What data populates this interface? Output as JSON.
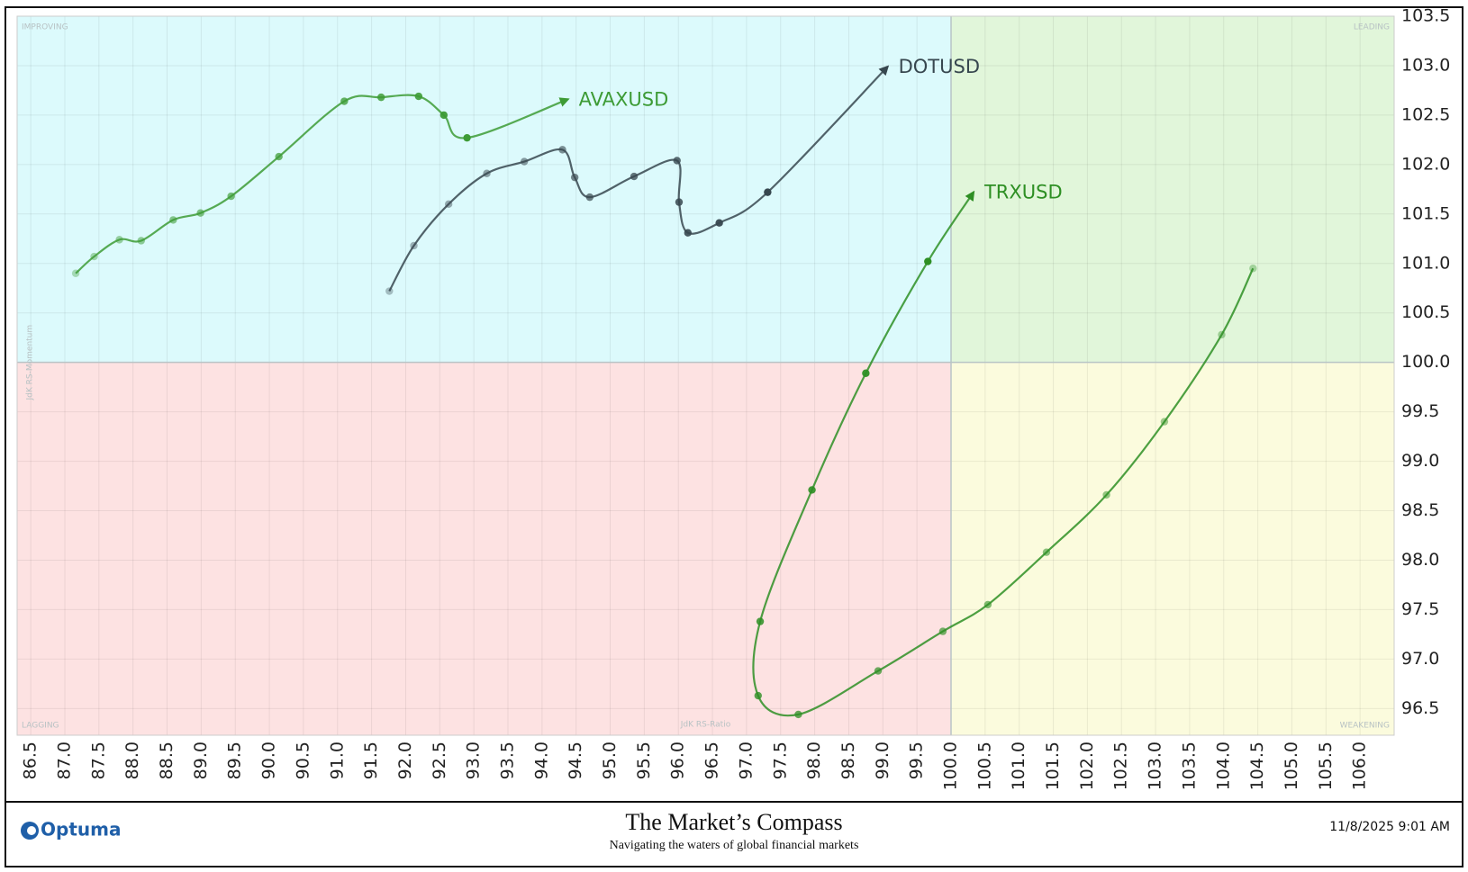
{
  "chart_data": {
    "type": "rrg",
    "quadrant_labels": {
      "top_left": "IMPROVING",
      "top_right": "LEADING",
      "bottom_left": "LAGGING",
      "bottom_right": "WEAKENING"
    },
    "x_label": "JdK RS-Ratio",
    "y_label": "JdK RS-Momentum",
    "quadrant_center": [
      100,
      100
    ],
    "grid": true,
    "xlim": [
      86.3,
      106.5
    ],
    "ylim": [
      96.23,
      103.5
    ],
    "xticks": [
      86.5,
      {
        "value": 87,
        "label": "87.0"
      },
      87.5,
      {
        "value": 88,
        "label": "88.0"
      },
      88.5,
      {
        "value": 89,
        "label": "89.0"
      },
      89.5,
      {
        "value": 90,
        "label": "90.0"
      },
      90.5,
      {
        "value": 91,
        "label": "91.0"
      },
      91.5,
      {
        "value": 92,
        "label": "92.0"
      },
      92.5,
      {
        "value": 93,
        "label": "93.0"
      },
      93.5,
      {
        "value": 94,
        "label": "94.0"
      },
      94.5,
      {
        "value": 95,
        "label": "95.0"
      },
      95.5,
      {
        "value": 96,
        "label": "96.0"
      },
      96.5,
      {
        "value": 97,
        "label": "97.0"
      },
      97.5,
      {
        "value": 98,
        "label": "98.0"
      },
      98.5,
      {
        "value": 99,
        "label": "99.0"
      },
      99.5,
      {
        "value": 100,
        "label": "100.0"
      },
      100.5,
      {
        "value": 101,
        "label": "101.0"
      },
      101.5,
      {
        "value": 102,
        "label": "102.0"
      },
      102.5,
      {
        "value": 103,
        "label": "103.0"
      },
      103.5,
      {
        "value": 104,
        "label": "104.0"
      },
      104.5,
      {
        "value": 105,
        "label": "105.0"
      },
      105.5,
      {
        "value": 106,
        "label": "106.0"
      }
    ],
    "yticks": [
      96.5,
      {
        "value": 97,
        "label": "97.0"
      },
      97.5,
      {
        "value": 98,
        "label": "98.0"
      },
      98.5,
      {
        "value": 99,
        "label": "99.0"
      },
      99.5,
      {
        "value": 100,
        "label": "100.0"
      },
      100.5,
      {
        "value": 101,
        "label": "101.0"
      },
      101.5,
      {
        "value": 102,
        "label": "102.0"
      },
      102.5,
      {
        "value": 103,
        "label": "103.0"
      },
      103.5
    ],
    "series": [
      {
        "name": "AVAXUSD",
        "color": "#3d9b35",
        "x": [
          87.16,
          87.43,
          87.8,
          88.12,
          88.59,
          88.99,
          89.44,
          90.14,
          91.1,
          91.64,
          92.19,
          92.56,
          92.9,
          94.38
        ],
        "values": [
          100.9,
          101.07,
          101.24,
          101.23,
          101.44,
          101.51,
          101.68,
          102.08,
          102.64,
          102.68,
          102.69,
          102.5,
          102.27,
          102.66
        ]
      },
      {
        "name": "DOTUSD",
        "color": "#37474f",
        "x": [
          91.76,
          92.12,
          92.63,
          93.19,
          93.74,
          94.3,
          94.48,
          94.7,
          95.35,
          95.98,
          96.01,
          96.14,
          96.6,
          97.31,
          99.07
        ],
        "values": [
          100.72,
          101.18,
          101.6,
          101.91,
          102.03,
          102.15,
          101.87,
          101.67,
          101.88,
          102.04,
          101.62,
          101.31,
          101.41,
          101.72,
          102.99
        ]
      },
      {
        "name": "TRXUSD",
        "color": "#2e8f24",
        "x": [
          104.43,
          103.97,
          103.13,
          102.28,
          101.4,
          100.54,
          99.88,
          98.93,
          97.76,
          97.17,
          97.2,
          97.96,
          98.75,
          99.66,
          100.33
        ],
        "values": [
          100.95,
          100.28,
          99.4,
          98.66,
          98.08,
          97.55,
          97.28,
          96.88,
          96.44,
          96.63,
          97.38,
          98.71,
          99.89,
          101.02,
          101.72
        ]
      }
    ]
  },
  "footer": {
    "logo": "Optuma",
    "title": "The Market’s Compass",
    "subtitle": "Navigating the waters of global financial markets",
    "timestamp": "11/8/2025 9:01 AM"
  }
}
